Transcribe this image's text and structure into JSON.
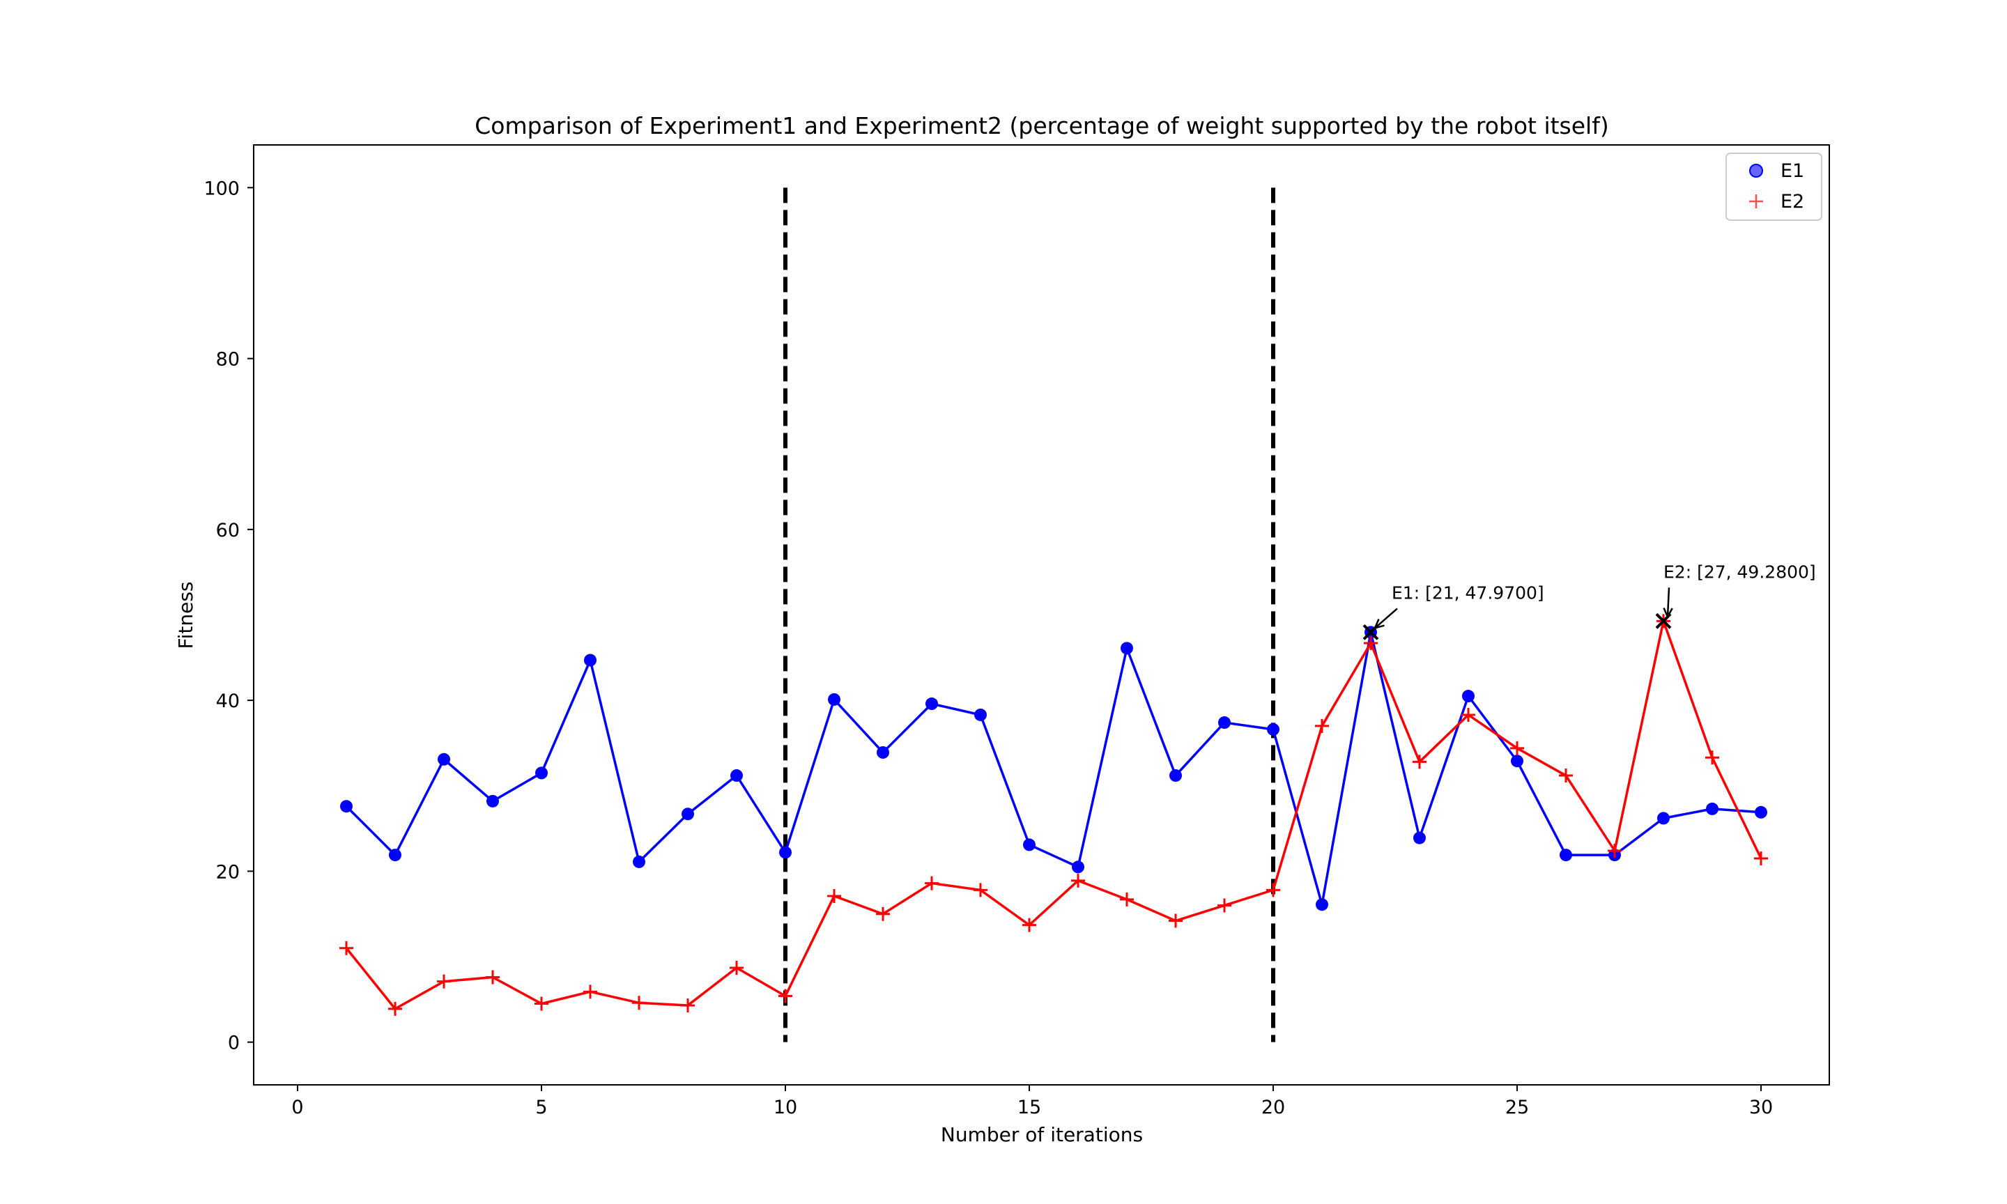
{
  "chart_data": {
    "type": "line",
    "title": "Comparison of Experiment1 and Experiment2 (percentage of weight supported by the robot itself)",
    "xlabel": "Number of iterations",
    "ylabel": "Fitness",
    "xlim": [
      -0.9,
      31.4
    ],
    "ylim": [
      -5,
      105
    ],
    "xticks": [
      0,
      5,
      10,
      15,
      20,
      25,
      30
    ],
    "yticks": [
      0,
      20,
      40,
      60,
      80,
      100
    ],
    "grid": false,
    "legend_position": "top-right",
    "x": [
      1,
      2,
      3,
      4,
      5,
      6,
      7,
      8,
      9,
      10,
      11,
      12,
      13,
      14,
      15,
      16,
      17,
      18,
      19,
      20,
      21,
      22,
      23,
      24,
      25,
      26,
      27,
      28,
      29,
      30
    ],
    "series": [
      {
        "name": "E1",
        "marker": "circle",
        "color": "#0000ff",
        "values": [
          27.6,
          21.9,
          33.1,
          28.2,
          31.5,
          44.7,
          21.1,
          26.7,
          31.2,
          22.2,
          40.1,
          33.9,
          39.6,
          38.3,
          23.1,
          20.5,
          46.1,
          31.2,
          37.4,
          36.6,
          16.1,
          47.97,
          23.9,
          40.5,
          32.9,
          21.9,
          21.9,
          26.2,
          27.3,
          26.9
        ]
      },
      {
        "name": "E2",
        "marker": "plus",
        "color": "#ff0000",
        "values": [
          11.0,
          3.9,
          7.1,
          7.6,
          4.5,
          5.9,
          4.6,
          4.3,
          8.7,
          5.4,
          17.1,
          15.0,
          18.6,
          17.8,
          13.7,
          18.9,
          16.7,
          14.2,
          16.0,
          17.8,
          37.0,
          46.7,
          32.8,
          38.3,
          34.4,
          31.2,
          22.4,
          49.28,
          33.3,
          21.5
        ]
      }
    ],
    "vlines": [
      10,
      20
    ],
    "vline_range": [
      0,
      100
    ],
    "vline_color": "#000000",
    "annotations": [
      {
        "text": "E1: [21, 47.9700]",
        "x": 22,
        "y": 47.97
      },
      {
        "text": "E2: [27, 49.2800]",
        "x": 28,
        "y": 49.28
      }
    ]
  }
}
